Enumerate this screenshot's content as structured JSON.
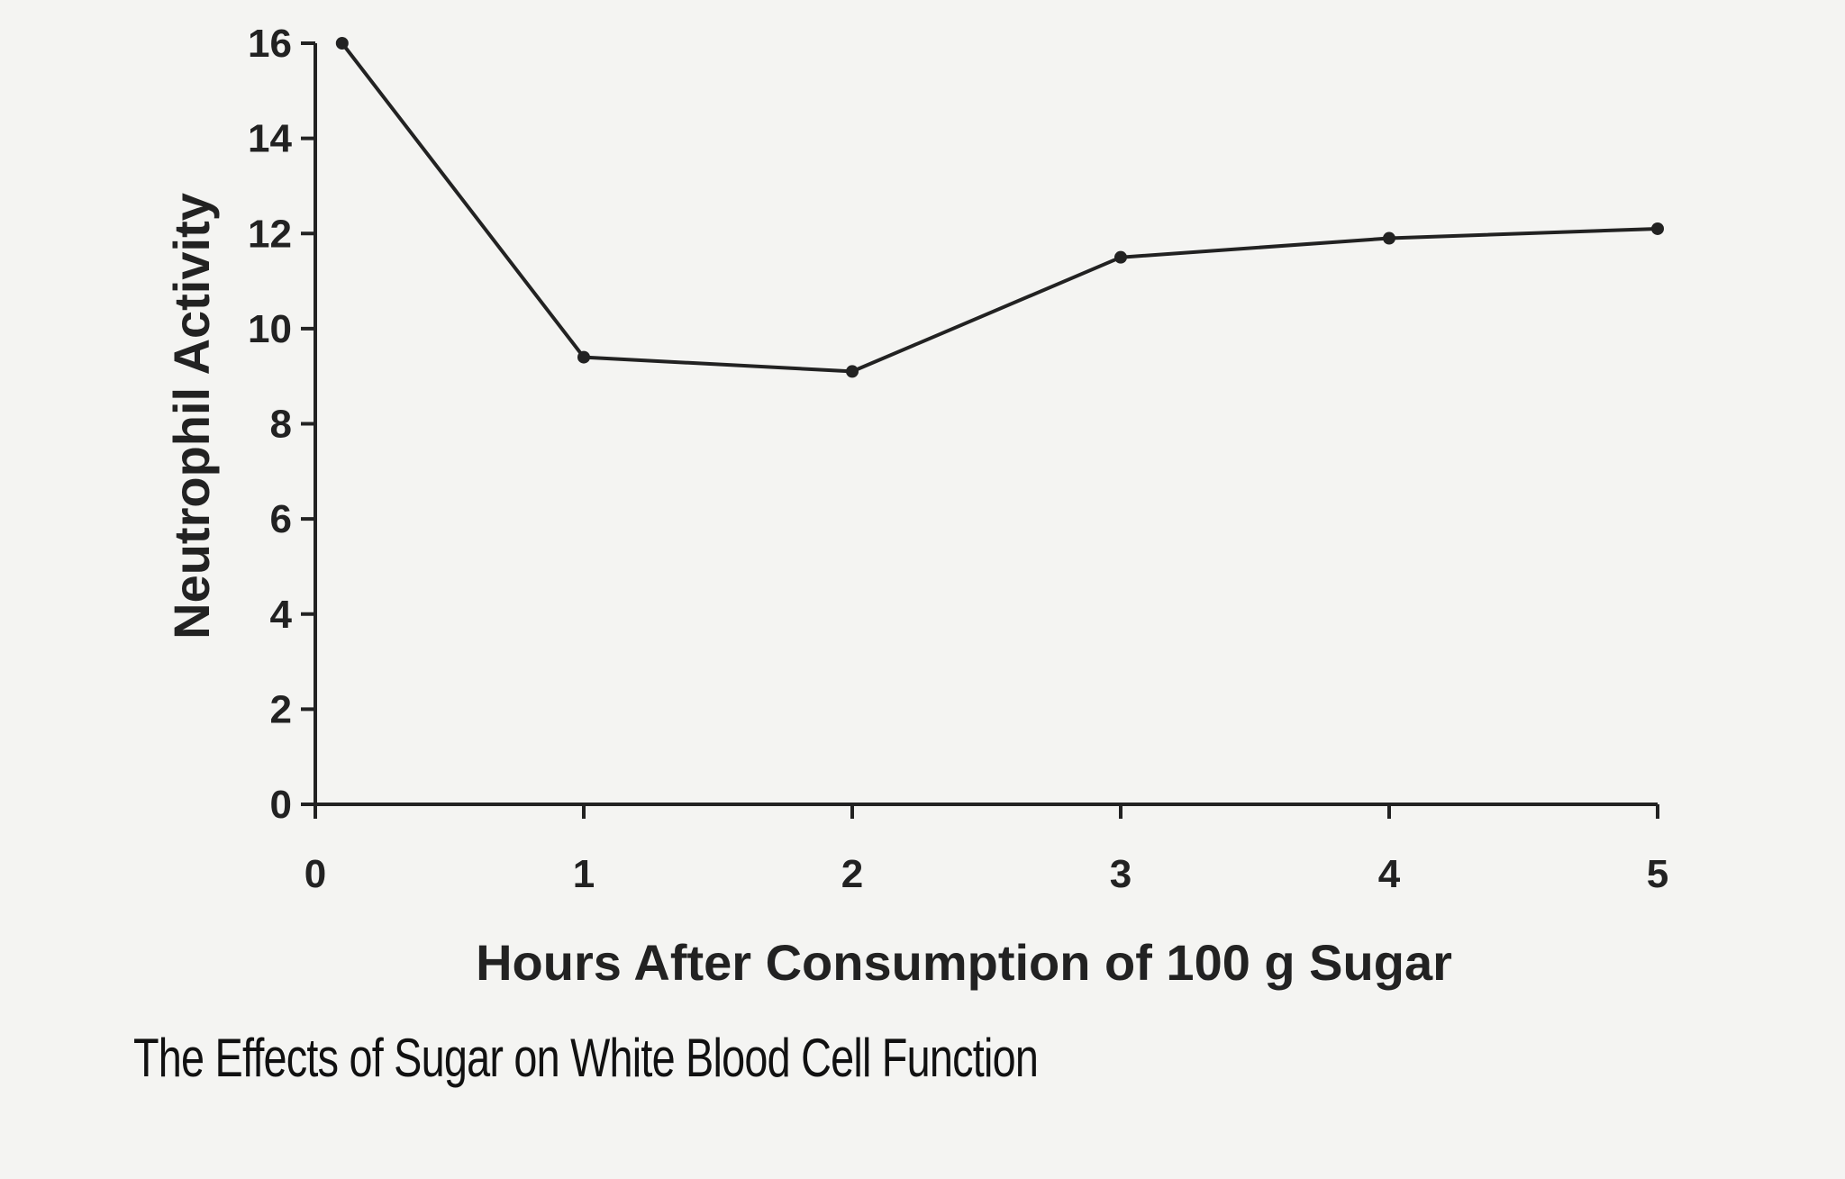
{
  "chart_data": {
    "type": "line",
    "xlabel": "Hours After Consumption of 100 g Sugar",
    "ylabel": "Neutrophil Activity",
    "x_ticks": [
      "0",
      "1",
      "2",
      "3",
      "4",
      "5"
    ],
    "y_ticks": [
      "0",
      "2",
      "4",
      "6",
      "8",
      "10",
      "12",
      "14",
      "16"
    ],
    "xlim": [
      0,
      5
    ],
    "ylim": [
      0,
      16
    ],
    "grid": false,
    "series": [
      {
        "x": [
          0.1,
          1,
          2,
          3,
          4,
          5
        ],
        "y": [
          16,
          9.4,
          9.1,
          11.5,
          11.9,
          12.1
        ]
      }
    ]
  },
  "caption": "The Effects of Sugar on White Blood Cell Function",
  "colors": {
    "ink": "#222222",
    "background": "#f4f4f2"
  }
}
